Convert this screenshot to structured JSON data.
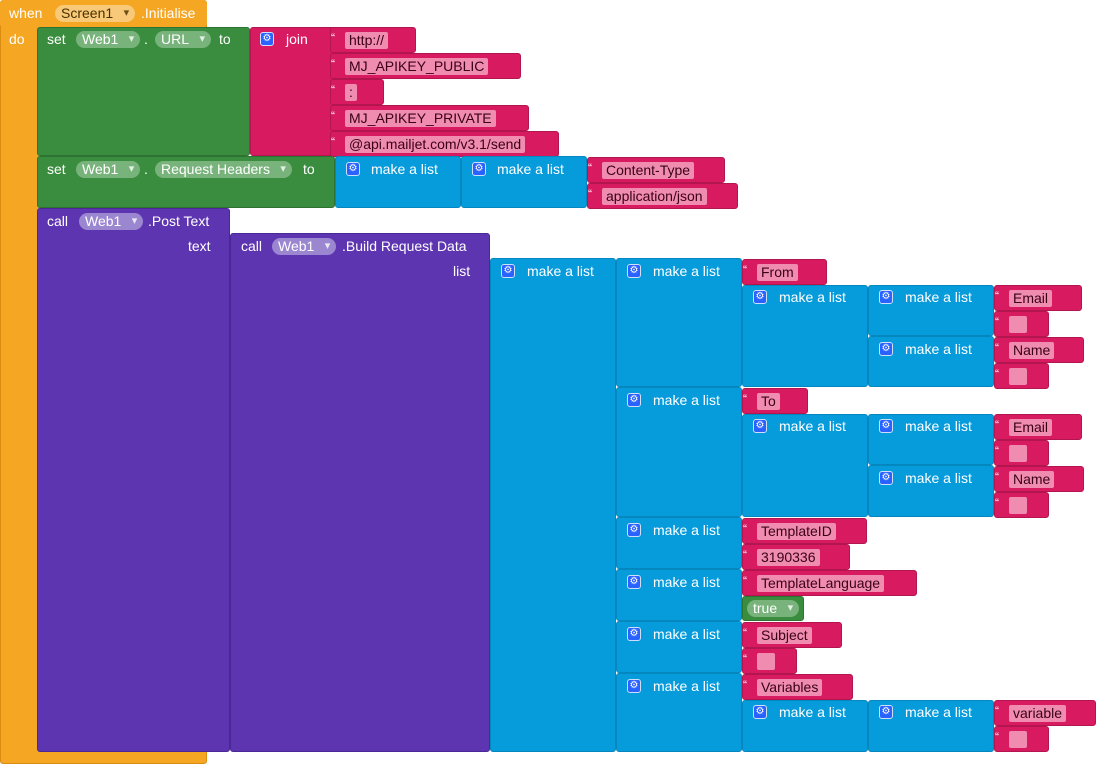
{
  "event": {
    "when": "when",
    "component": "Screen1",
    "event_name": ".Initialise",
    "do": "do"
  },
  "set1": {
    "set": "set",
    "component": "Web1",
    "dot": ".",
    "property": "URL",
    "to": "to",
    "join": "join",
    "parts": [
      "http://",
      "MJ_APIKEY_PUBLIC",
      ":",
      "MJ_APIKEY_PRIVATE",
      "@api.mailjet.com/v3.1/send"
    ]
  },
  "set2": {
    "set": "set",
    "component": "Web1",
    "dot": ".",
    "property": "Request Headers",
    "to": "to",
    "make_a_list": "make a list",
    "key": "Content-Type",
    "value": "application/json"
  },
  "call1": {
    "call": "call",
    "component": "Web1",
    "method": ".Post Text",
    "text": "text"
  },
  "call2": {
    "call": "call",
    "component": "Web1",
    "method": ".Build Request Data",
    "list": "list"
  },
  "make_a_list": "make a list",
  "labels": {
    "from": "From",
    "to": "To",
    "email": "Email",
    "name": "Name",
    "template_id": "TemplateID",
    "template_id_value": "3190336",
    "template_language": "TemplateLanguage",
    "true": "true",
    "subject": "Subject",
    "variables": "Variables",
    "variable": "variable",
    "empty": ""
  }
}
